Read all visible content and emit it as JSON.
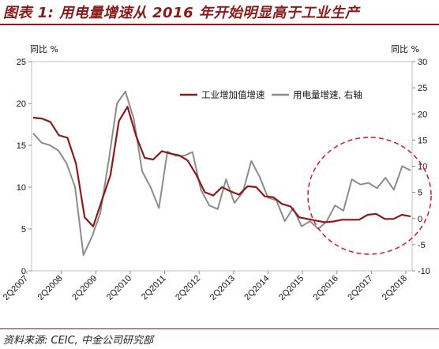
{
  "title": "图表 1:  用电量增速从 2016 年开始明显高于工业生产",
  "source": "资料来源:  CEIC,  中金公司研究部",
  "chart_data": {
    "type": "line",
    "left_unit": "同比 %",
    "right_unit": "同比 %",
    "ylim_left": [
      0,
      25
    ],
    "ylim_right": [
      -10,
      30
    ],
    "yticks_left": [
      "0",
      "5",
      "10",
      "15",
      "20",
      "25"
    ],
    "yticks_right": [
      "-10",
      "-5",
      "0",
      "5",
      "10",
      "15",
      "20",
      "25",
      "30"
    ],
    "x_tick_labels": [
      "2Q2007",
      "2Q2008",
      "2Q2009",
      "2Q2010",
      "2Q2011",
      "2Q2012",
      "2Q2013",
      "2Q2014",
      "2Q2015",
      "2Q2016",
      "2Q2017",
      "2Q2018"
    ],
    "colors": {
      "industrial": "#8B1A1A",
      "electricity": "#8C8C8C",
      "circle": "#D9252A",
      "accent": "#8B1A1A"
    },
    "series": [
      {
        "name": "工业增加值增速",
        "axis": "left",
        "values": [
          18.3,
          18.2,
          17.8,
          16.2,
          15.9,
          12.8,
          6.4,
          5.3,
          8.4,
          11.4,
          17.9,
          19.6,
          16.1,
          13.5,
          13.3,
          14.3,
          14.0,
          13.8,
          13.2,
          11.5,
          9.4,
          9.0,
          10.0,
          9.5,
          9.1,
          10.1,
          10.0,
          8.9,
          8.8,
          8.0,
          7.7,
          6.4,
          6.2,
          6.0,
          5.8,
          5.9,
          6.1,
          6.1,
          6.1,
          6.7,
          6.8,
          6.2,
          6.2,
          6.7,
          6.5
        ]
      },
      {
        "name": "用电量增速,  右轴",
        "axis": "right",
        "values": [
          16.3,
          14.5,
          14.0,
          13.0,
          10.5,
          6.0,
          -7.0,
          -3.5,
          1.0,
          11.0,
          22.0,
          24.3,
          19.0,
          9.0,
          6.0,
          2.0,
          12.8,
          12.0,
          12.0,
          12.7,
          5.5,
          2.5,
          1.8,
          7.5,
          3.0,
          5.0,
          11.0,
          8.0,
          4.0,
          3.5,
          -0.5,
          2.0,
          -1.5,
          -0.5,
          -2.0,
          -0.5,
          2.5,
          1.5,
          7.5,
          6.5,
          6.8,
          5.8,
          7.8,
          5.5,
          10.0,
          9.2
        ]
      }
    ]
  }
}
